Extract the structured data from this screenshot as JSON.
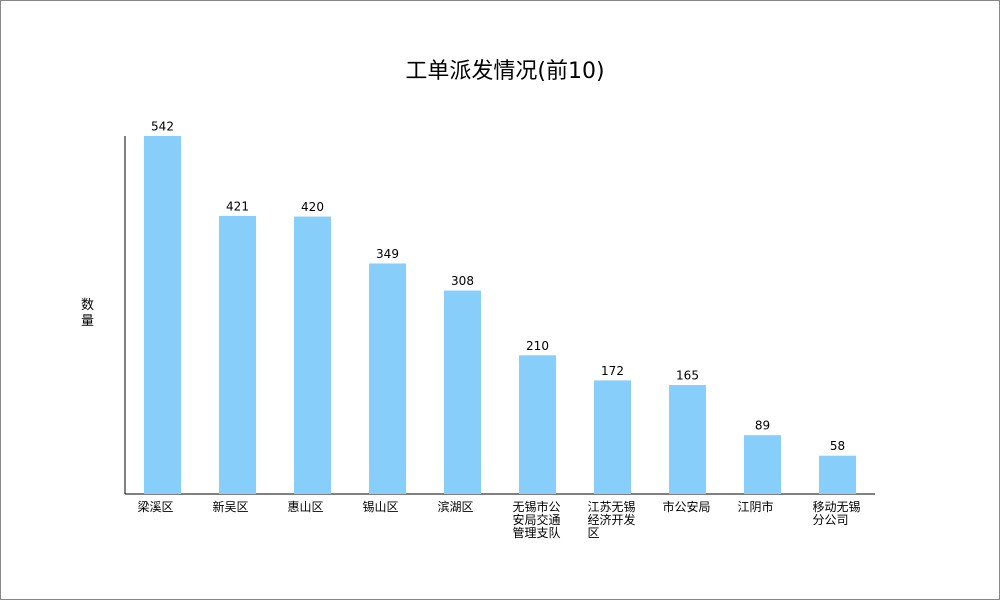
{
  "chart_data": {
    "type": "bar",
    "title": "工单派发情况(前10)",
    "y_label": "数量",
    "categories": [
      "梁溪区",
      "新吴区",
      "惠山区",
      "锡山区",
      "滨湖区",
      "无锡市公安局交通管理支队",
      "江苏无锡经济开发区",
      "市公安局",
      "江阴市",
      "移动无锡分公司"
    ],
    "values": [
      542,
      421,
      420,
      349,
      308,
      210,
      172,
      165,
      89,
      58
    ],
    "color": "#87cefa",
    "ylim": [
      0,
      542
    ]
  }
}
